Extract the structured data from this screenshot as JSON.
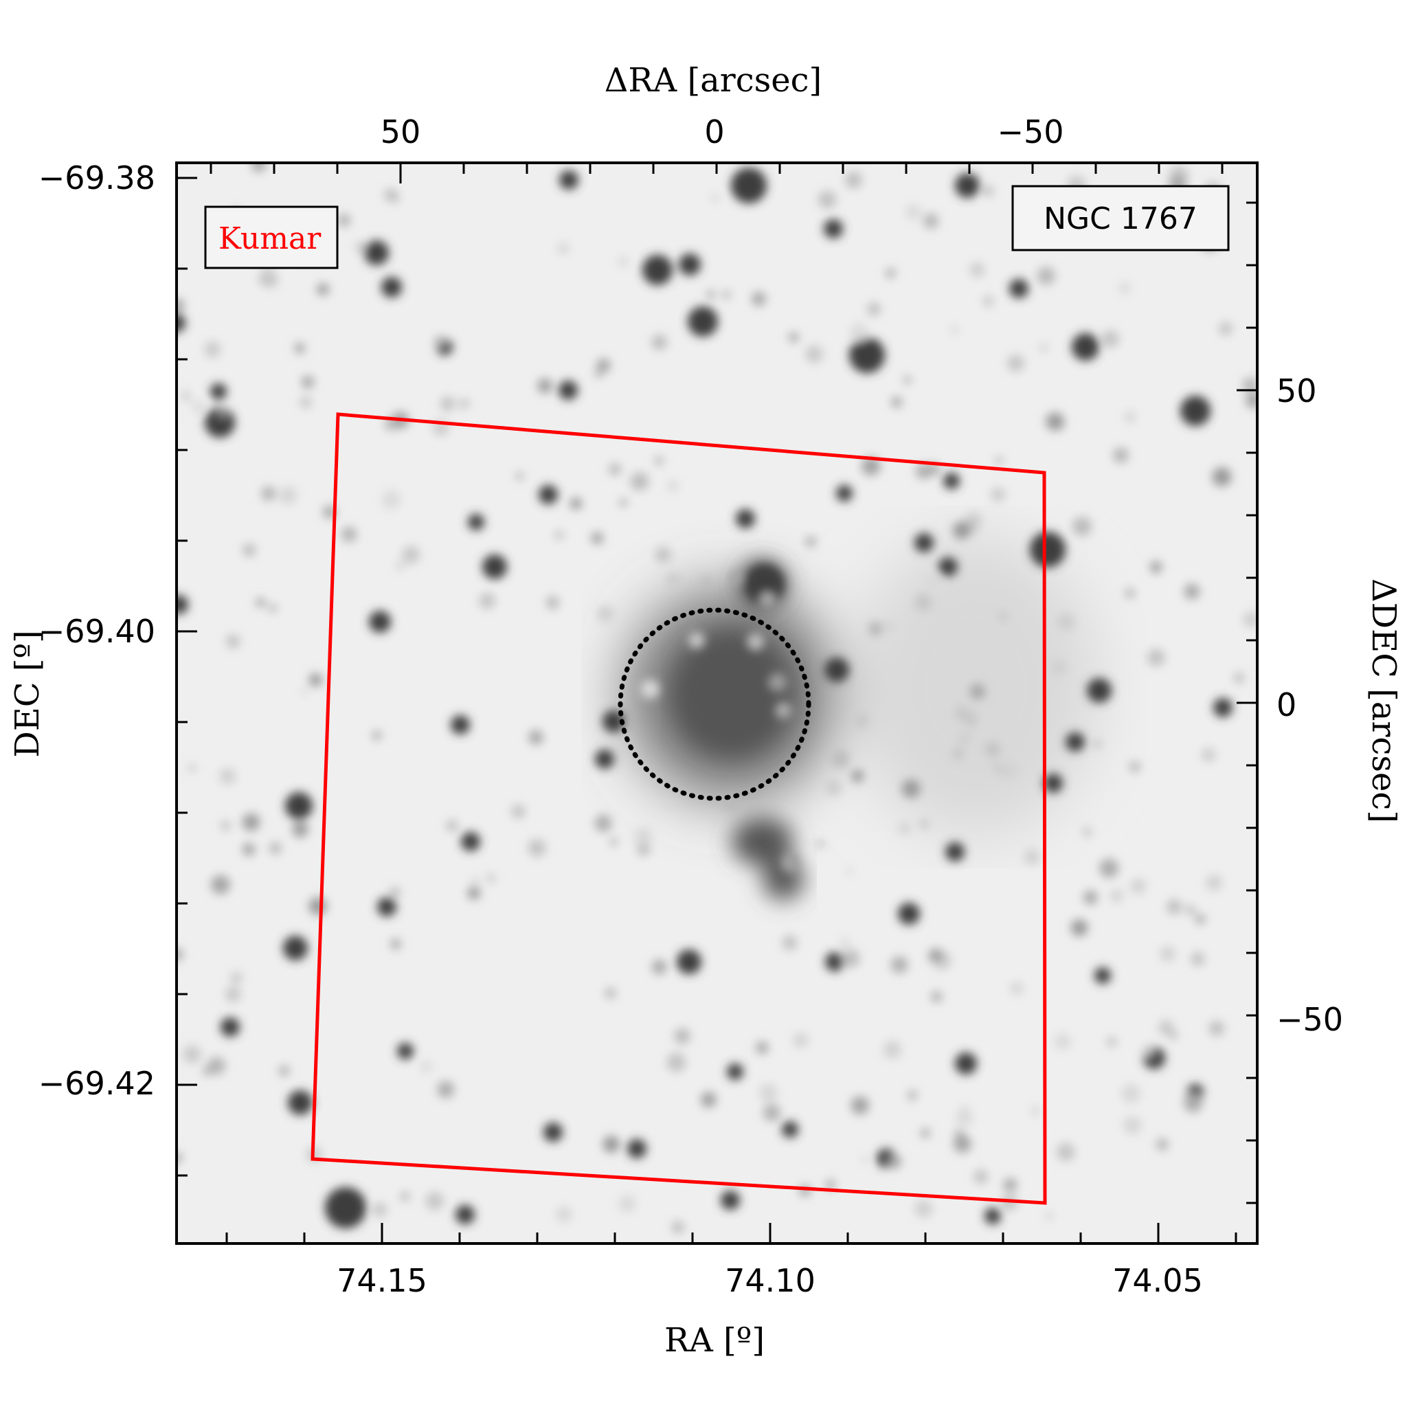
{
  "panel": {
    "name": "NGC 1767",
    "survey": "Kumar"
  },
  "axes": {
    "top": {
      "label": "ΔRA [arcsec]",
      "ticks": [
        "50",
        "0",
        "−50"
      ],
      "values": [
        50,
        0,
        -50
      ]
    },
    "bottom": {
      "label": "RA [º]",
      "ticks": [
        "74.15",
        "74.10",
        "74.05"
      ],
      "values": [
        74.15,
        74.1,
        74.05
      ]
    },
    "left": {
      "label": "DEC [º]",
      "ticks": [
        "−69.38",
        "−69.40",
        "−69.42"
      ],
      "values": [
        -69.38,
        -69.4,
        -69.42
      ]
    },
    "right": {
      "label": "ΔDEC [arcsec]",
      "ticks": [
        "50",
        "0",
        "−50"
      ],
      "values": [
        50,
        0,
        -50
      ]
    }
  },
  "colors": {
    "footprint": "#ff0000",
    "aperture": "#000000",
    "survey_label": "#ff0000",
    "background": "#f0f0f0"
  }
}
